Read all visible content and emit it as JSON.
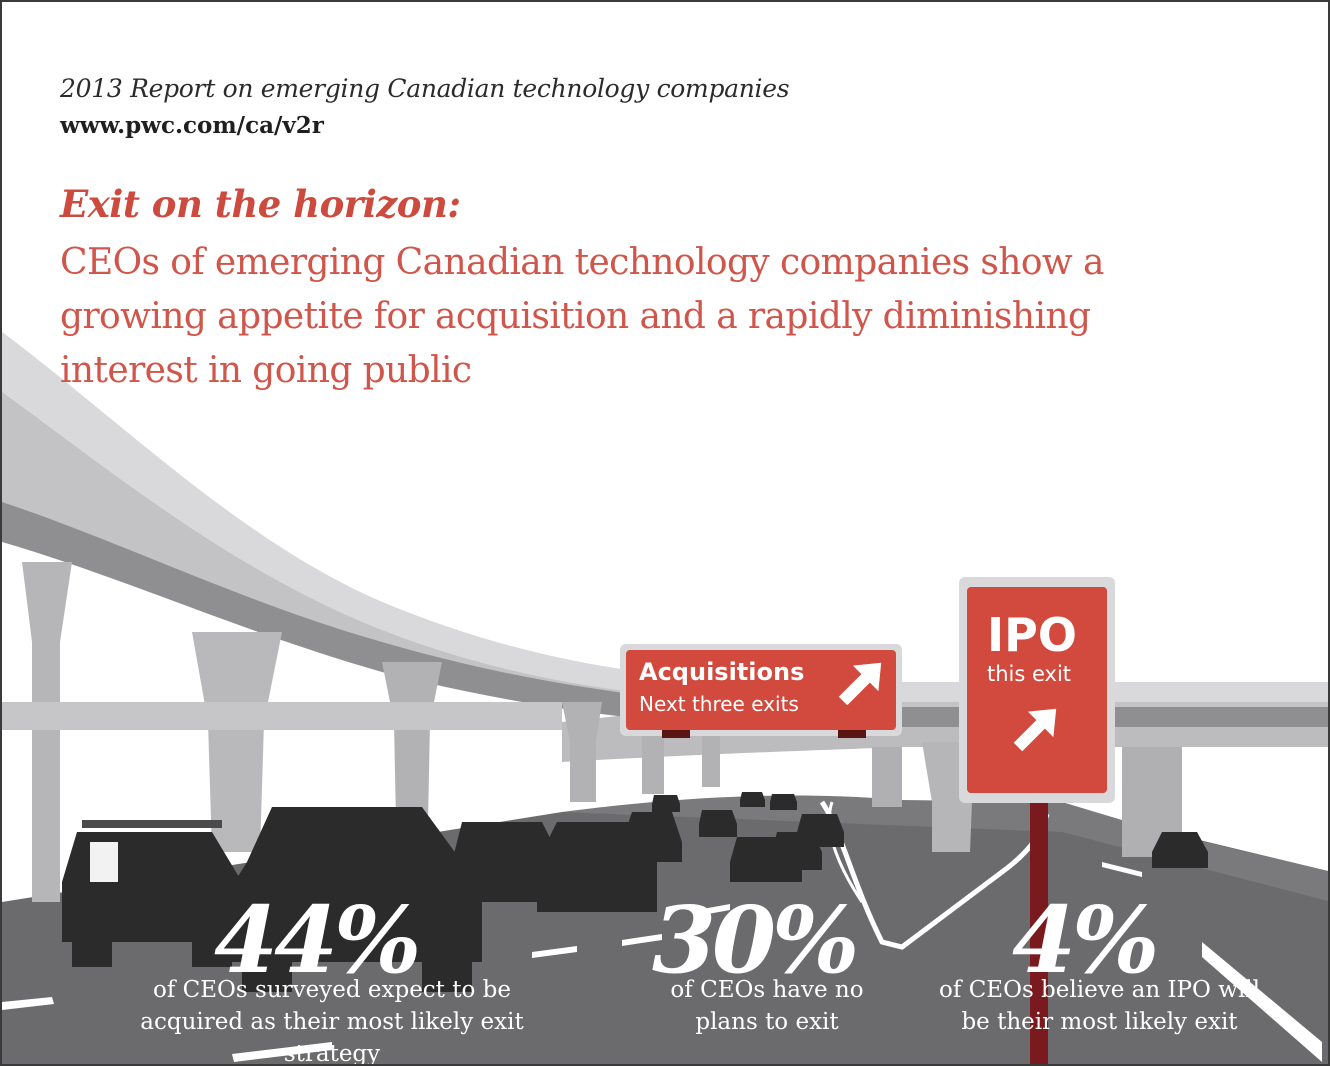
{
  "header": {
    "report_title": "2013 Report on emerging Canadian technology companies",
    "url": "www.pwc.com/ca/v2r"
  },
  "headline": {
    "title": "Exit on the horizon:",
    "subtitle": "CEOs of emerging Canadian technology companies show a growing appetite for acquisition and a rapidly diminishing interest in going public"
  },
  "signs": {
    "acquisitions": {
      "title": "Acquisitions",
      "subtitle": "Next three exits"
    },
    "ipo": {
      "title": "IPO",
      "subtitle": "this exit"
    }
  },
  "stats": [
    {
      "value": "44%",
      "caption": "of CEOs surveyed expect to be acquired as their most likely exit strategy"
    },
    {
      "value": "30%",
      "caption": "of CEOs have no plans to exit"
    },
    {
      "value": "4%",
      "caption": "of CEOs believe an IPO will be their most likely exit"
    }
  ],
  "colors": {
    "accent_red": "#cc4b3e",
    "sign_red": "#d14a3d",
    "road_gray": "#6b6b6d",
    "overpass_gray": "#b4b4b6"
  }
}
